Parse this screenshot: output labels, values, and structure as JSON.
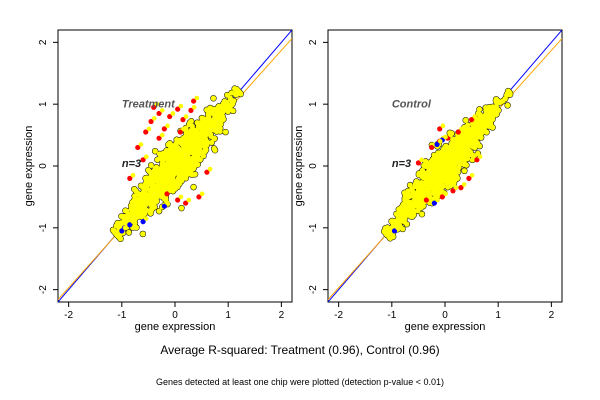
{
  "chart_data": [
    {
      "type": "scatter",
      "panel_label": "Treatment",
      "n_label": "n=3",
      "xlabel": "gene expression",
      "ylabel": "gene expression",
      "xlim": [
        -2.2,
        2.2
      ],
      "ylim": [
        -2.2,
        2.2
      ],
      "x_ticks": [
        -2,
        -1,
        0,
        1,
        2
      ],
      "y_ticks": [
        -2,
        -1,
        0,
        1,
        2
      ],
      "x_tick_labels": [
        "-2",
        "-1",
        "0",
        "1",
        "2"
      ],
      "y_tick_labels": [
        "-2",
        "-1",
        "0",
        "1",
        "2"
      ],
      "reference_lines": [
        {
          "name": "identity",
          "color": "#0000ff",
          "intercept": 0,
          "slope": 1
        },
        {
          "name": "fit",
          "color": "#ffa500",
          "intercept": -0.05,
          "slope": 0.96
        }
      ],
      "point_colors": {
        "main": "#ffff00",
        "up": "#ff0000",
        "down": "#0000ff",
        "outline": "#000000"
      },
      "cloud": {
        "center_x": 0.0,
        "center_y": 0.0,
        "x_min": -1.1,
        "x_max": 1.2,
        "spread_along": 0.55,
        "spread_across": 0.18
      },
      "outliers": [
        {
          "x": -0.45,
          "y": 0.72,
          "color": "red"
        },
        {
          "x": -0.3,
          "y": 0.85,
          "color": "red"
        },
        {
          "x": -0.1,
          "y": 0.8,
          "color": "red"
        },
        {
          "x": 0.05,
          "y": 0.92,
          "color": "red"
        },
        {
          "x": -0.55,
          "y": 0.55,
          "color": "red"
        },
        {
          "x": -0.7,
          "y": 0.3,
          "color": "red"
        },
        {
          "x": -0.2,
          "y": 0.6,
          "color": "red"
        },
        {
          "x": 0.15,
          "y": 0.75,
          "color": "red"
        },
        {
          "x": -0.6,
          "y": 0.1,
          "color": "red"
        },
        {
          "x": 0.3,
          "y": 0.9,
          "color": "red"
        },
        {
          "x": 0.45,
          "y": -0.5,
          "color": "red"
        },
        {
          "x": 0.2,
          "y": -0.6,
          "color": "red"
        },
        {
          "x": 0.6,
          "y": -0.1,
          "color": "red"
        },
        {
          "x": 0.05,
          "y": -0.55,
          "color": "red"
        },
        {
          "x": -0.3,
          "y": 0.45,
          "color": "red"
        },
        {
          "x": -0.85,
          "y": -0.2,
          "color": "red"
        },
        {
          "x": -0.4,
          "y": 0.95,
          "color": "red"
        },
        {
          "x": 0.35,
          "y": 1.05,
          "color": "red"
        },
        {
          "x": 0.1,
          "y": 0.55,
          "color": "red"
        },
        {
          "x": -0.15,
          "y": -0.45,
          "color": "red"
        },
        {
          "x": -0.95,
          "y": -1.0,
          "color": "blue"
        },
        {
          "x": -0.6,
          "y": -0.9,
          "color": "blue"
        },
        {
          "x": -0.2,
          "y": -0.65,
          "color": "blue"
        },
        {
          "x": -1.0,
          "y": -1.05,
          "color": "blue"
        },
        {
          "x": -0.85,
          "y": -0.95,
          "color": "blue"
        }
      ]
    },
    {
      "type": "scatter",
      "panel_label": "Control",
      "n_label": "n=3",
      "xlabel": "gene expression",
      "ylabel": "gene expression",
      "xlim": [
        -2.2,
        2.2
      ],
      "ylim": [
        -2.2,
        2.2
      ],
      "x_ticks": [
        -2,
        -1,
        0,
        1,
        2
      ],
      "y_ticks": [
        -2,
        -1,
        0,
        1,
        2
      ],
      "x_tick_labels": [
        "-2",
        "-1",
        "0",
        "1",
        "2"
      ],
      "y_tick_labels": [
        "-2",
        "-1",
        "0",
        "1",
        "2"
      ],
      "reference_lines": [
        {
          "name": "identity",
          "color": "#0000ff",
          "intercept": 0,
          "slope": 1
        },
        {
          "name": "fit",
          "color": "#ffa500",
          "intercept": -0.05,
          "slope": 0.96
        }
      ],
      "point_colors": {
        "main": "#ffff00",
        "up": "#ff0000",
        "down": "#0000ff",
        "outline": "#000000"
      },
      "cloud": {
        "center_x": 0.0,
        "center_y": 0.0,
        "x_min": -1.1,
        "x_max": 1.2,
        "spread_along": 0.52,
        "spread_across": 0.15
      },
      "outliers": [
        {
          "x": -0.1,
          "y": 0.4,
          "color": "red"
        },
        {
          "x": -0.25,
          "y": 0.3,
          "color": "red"
        },
        {
          "x": 0.05,
          "y": 0.45,
          "color": "red"
        },
        {
          "x": 0.25,
          "y": 0.55,
          "color": "red"
        },
        {
          "x": 0.3,
          "y": -0.35,
          "color": "red"
        },
        {
          "x": 0.45,
          "y": -0.2,
          "color": "red"
        },
        {
          "x": 0.15,
          "y": -0.4,
          "color": "red"
        },
        {
          "x": -0.35,
          "y": -0.55,
          "color": "red"
        },
        {
          "x": 0.5,
          "y": 0.75,
          "color": "red"
        },
        {
          "x": -0.5,
          "y": 0.05,
          "color": "red"
        },
        {
          "x": 0.6,
          "y": 0.1,
          "color": "red"
        },
        {
          "x": -0.05,
          "y": -0.5,
          "color": "red"
        },
        {
          "x": -0.1,
          "y": 0.6,
          "color": "red"
        },
        {
          "x": -0.05,
          "y": 0.42,
          "color": "blue"
        },
        {
          "x": -0.15,
          "y": 0.35,
          "color": "blue"
        },
        {
          "x": -0.2,
          "y": -0.6,
          "color": "blue"
        },
        {
          "x": -0.95,
          "y": -1.05,
          "color": "blue"
        }
      ]
    }
  ],
  "caption_main": "Average R-squared: Treatment (0.96), Control (0.96)",
  "caption_sub": "Genes detected at least one chip were plotted (detection p-value < 0.01)"
}
